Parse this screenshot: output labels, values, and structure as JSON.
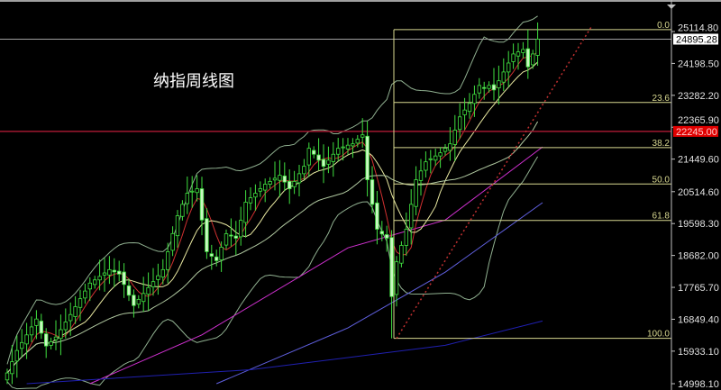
{
  "title": "纳指周线图",
  "chart_data": {
    "type": "candlestick",
    "timeframe": "weekly",
    "y_axis": {
      "range": [
        14998.1,
        25114.8
      ],
      "ticks": [
        "25114.80",
        "24198.50",
        "23282.20",
        "22365.90",
        "21449.60",
        "20514.60",
        "19598.30",
        "18682.00",
        "17765.70",
        "16849.40",
        "15933.10",
        "14998.10"
      ]
    },
    "closes": [
      15307,
      15630,
      15952,
      16180,
      16400,
      16630,
      16856,
      16450,
      16081,
      16200,
      16339,
      16550,
      16770,
      16985,
      17210,
      17440,
      17660,
      17888,
      17980,
      18080,
      18180,
      18275,
      18210,
      18146,
      17850,
      17540,
      17243,
      17420,
      17590,
      17759,
      17930,
      18100,
      18275,
      18790,
      19310,
      19824,
      20150,
      20469,
      20530,
      20598,
      19700,
      18791,
      18660,
      18533,
      18920,
      19307,
      19240,
      19178,
      19690,
      20211,
      20340,
      20469,
      20600,
      20727,
      20810,
      20900,
      20985,
      20790,
      20598,
      20810,
      21030,
      21243,
      21760,
      21590,
      21420,
      21243,
      21420,
      21590,
      21760,
      21800,
      21850,
      21889,
      22020,
      22147,
      20856,
      20150,
      19436,
      19300,
      19178,
      17501,
      18500,
      18970,
      19436,
      20150,
      20856,
      21110,
      21372,
      21460,
      21540,
      21631,
      21760,
      21889,
      22280,
      22663,
      22860,
      23050,
      23310,
      23566,
      23500,
      23566,
      23437,
      23700,
      23953,
      24210,
      24470,
      24530,
      24599,
      24100,
      24470,
      24895
    ],
    "current_price": {
      "value": 24895.28,
      "label": "24895.28"
    },
    "horizontal_line": {
      "value": 22245.0,
      "label": "22245.00",
      "color": "#e00000"
    },
    "fibonacci": {
      "high": 25170,
      "low": 16300,
      "levels": [
        {
          "ratio": 0.0,
          "label": "0.0"
        },
        {
          "ratio": 0.236,
          "label": "23.6"
        },
        {
          "ratio": 0.382,
          "label": "38.2"
        },
        {
          "ratio": 0.5,
          "label": "50.0"
        },
        {
          "ratio": 0.618,
          "label": "61.8"
        },
        {
          "ratio": 1.0,
          "label": "100.0"
        }
      ]
    },
    "trendline": {
      "from": {
        "index": 80,
        "price": 16300
      },
      "to": {
        "index": 120,
        "price": 25244
      },
      "color": "#c03030",
      "style": "dotted"
    },
    "moving_averages": [
      {
        "period": 5,
        "color": "#d03030"
      },
      {
        "period": 10,
        "color": "#e8e8a0"
      },
      {
        "period": 30,
        "color": "#b0c8a0"
      }
    ],
    "long_moving_averages": [
      {
        "color": "#d030d0",
        "points": [
          [
            17,
            14998
          ],
          [
            40,
            16400
          ],
          [
            70,
            18900
          ],
          [
            90,
            19700
          ],
          [
            110,
            21800
          ]
        ]
      },
      {
        "color": "#6060e0",
        "points": [
          [
            43,
            14998
          ],
          [
            70,
            16600
          ],
          [
            90,
            18200
          ],
          [
            110,
            20200
          ]
        ]
      },
      {
        "color": "#2020b0",
        "points": [
          [
            4,
            14998
          ],
          [
            50,
            15400
          ],
          [
            90,
            16100
          ],
          [
            110,
            16800
          ]
        ]
      }
    ],
    "bollinger": {
      "period": 20,
      "deviations": 2,
      "color": "#90b090"
    },
    "colors": {
      "background": "#000000",
      "bull": "#40e040",
      "bear": "#c8f8c0",
      "grid_axis": "#c0c0c0"
    },
    "grid": false
  }
}
